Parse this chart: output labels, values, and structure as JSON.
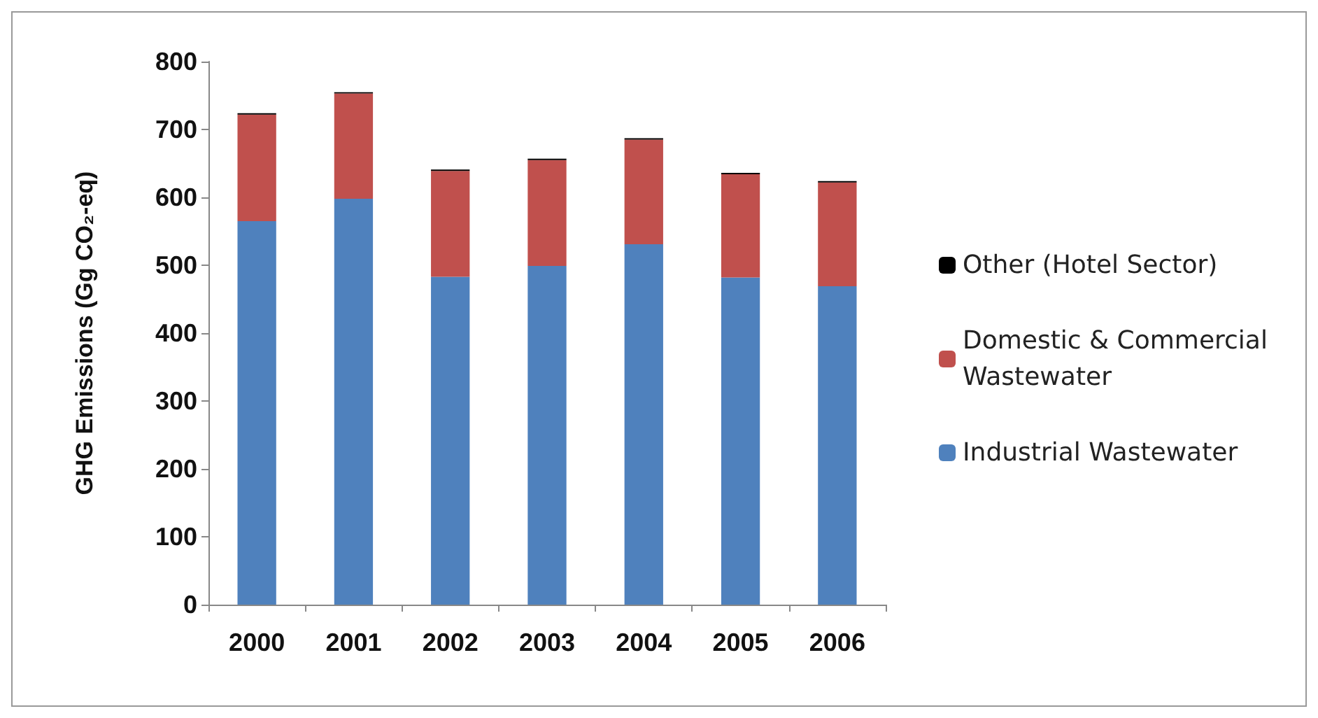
{
  "chart_data": {
    "type": "bar",
    "stacked": true,
    "ylabel": "GHG Emissions (Gg CO₂-eq)",
    "categories": [
      "2000",
      "2001",
      "2002",
      "2003",
      "2004",
      "2005",
      "2006"
    ],
    "series": [
      {
        "name": "Industrial Wastewater",
        "color": "#4f81bd",
        "values": [
          565,
          598,
          483,
          499,
          531,
          482,
          469
        ]
      },
      {
        "name": "Domestic & Commercial Wastewater",
        "color": "#c0504d",
        "values": [
          157,
          155,
          156,
          156,
          154,
          152,
          153
        ]
      },
      {
        "name": "Other (Hotel Sector)",
        "color": "#000000",
        "values": [
          2,
          2,
          2,
          2,
          2,
          2,
          2
        ]
      }
    ],
    "ylim": [
      0,
      800
    ],
    "yticks": [
      0,
      100,
      200,
      300,
      400,
      500,
      600,
      700,
      800
    ],
    "grid": false,
    "legend": "right"
  }
}
